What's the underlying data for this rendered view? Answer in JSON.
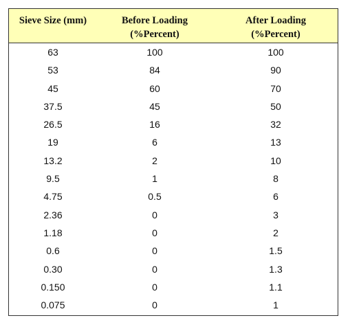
{
  "table": {
    "headers": [
      {
        "line1": "Sieve Size (mm)",
        "line2": ""
      },
      {
        "line1": "Before Loading",
        "line2": "(%Percent)"
      },
      {
        "line1": "After Loading",
        "line2": "(%Percent)"
      }
    ],
    "header_bg": "#ffffb7",
    "rows": [
      [
        "63",
        "100",
        "100"
      ],
      [
        "53",
        "84",
        "90"
      ],
      [
        "45",
        "60",
        "70"
      ],
      [
        "37.5",
        "45",
        "50"
      ],
      [
        "26.5",
        "16",
        "32"
      ],
      [
        "19",
        "6",
        "13"
      ],
      [
        "13.2",
        "2",
        "10"
      ],
      [
        "9.5",
        "1",
        "8"
      ],
      [
        "4.75",
        "0.5",
        "6"
      ],
      [
        "2.36",
        "0",
        "3"
      ],
      [
        "1.18",
        "0",
        "2"
      ],
      [
        "0.6",
        "0",
        "1.5"
      ],
      [
        "0.30",
        "0",
        "1.3"
      ],
      [
        "0.150",
        "0",
        "1.1"
      ],
      [
        "0.075",
        "0",
        "1"
      ]
    ]
  }
}
